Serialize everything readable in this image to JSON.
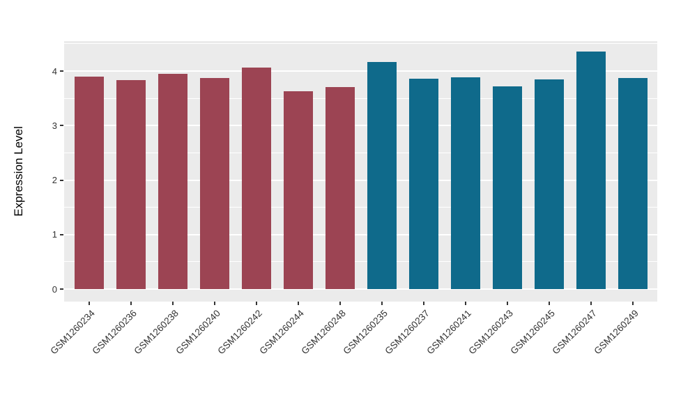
{
  "chart_data": {
    "type": "bar",
    "title": "",
    "xlabel": "",
    "ylabel": "Expression Level",
    "categories": [
      "GSM1260234",
      "GSM1260236",
      "GSM1260238",
      "GSM1260240",
      "GSM1260242",
      "GSM1260244",
      "GSM1260248",
      "GSM1260235",
      "GSM1260237",
      "GSM1260241",
      "GSM1260243",
      "GSM1260245",
      "GSM1260247",
      "GSM1260249"
    ],
    "values": [
      3.9,
      3.84,
      3.95,
      3.87,
      4.06,
      3.63,
      3.7,
      4.16,
      3.86,
      3.89,
      3.72,
      3.85,
      4.36,
      3.87
    ],
    "bar_colors": [
      "#9C4453",
      "#9C4453",
      "#9C4453",
      "#9C4453",
      "#9C4453",
      "#9C4453",
      "#9C4453",
      "#0F6A8B",
      "#0F6A8B",
      "#0F6A8B",
      "#0F6A8B",
      "#0F6A8B",
      "#0F6A8B",
      "#0F6A8B"
    ],
    "color_groups": {
      "maroon": "#9C4453",
      "teal": "#0F6A8B"
    },
    "yticks": [
      "0",
      "1",
      "2",
      "3",
      "4"
    ],
    "ytick_values": [
      0,
      1,
      2,
      3,
      4
    ],
    "minor_tick_values": [
      0.5,
      1.5,
      2.5,
      3.5,
      4.5
    ],
    "ylim": [
      0,
      4.55
    ],
    "grid": true,
    "legend": false,
    "panel_bg": "#EBEBEB",
    "grid_color": "#FFFFFF",
    "axis_text_color": "#333333"
  }
}
